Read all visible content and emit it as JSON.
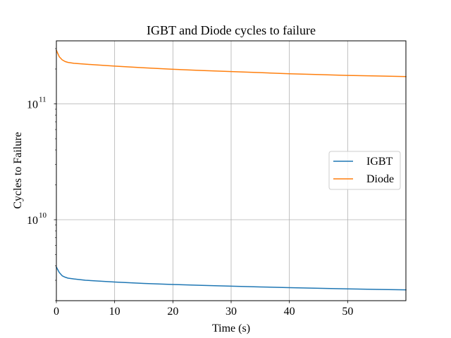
{
  "chart_data": {
    "type": "line",
    "title": "IGBT and Diode cycles to failure",
    "xlabel": "Time (s)",
    "ylabel": "Cycles to Failure",
    "xlim": [
      0,
      60
    ],
    "ylim": [
      2000000000,
      350000000000
    ],
    "yscale": "log",
    "grid": true,
    "legend_position": "center-right",
    "x_ticks": [
      0,
      10,
      20,
      30,
      40,
      50
    ],
    "y_ticks": [
      {
        "value": 10000000000,
        "base": "10",
        "exp": "10"
      },
      {
        "value": 100000000000,
        "base": "10",
        "exp": "11"
      }
    ],
    "series": [
      {
        "name": "IGBT",
        "color": "#1f77b4",
        "points": [
          [
            0,
            3900000000
          ],
          [
            0.5,
            3500000000
          ],
          [
            1,
            3280000000
          ],
          [
            1.5,
            3190000000
          ],
          [
            2,
            3130000000
          ],
          [
            3,
            3080000000
          ],
          [
            5,
            3000000000
          ],
          [
            10,
            2900000000
          ],
          [
            15,
            2820000000
          ],
          [
            20,
            2760000000
          ],
          [
            25,
            2710000000
          ],
          [
            30,
            2670000000
          ],
          [
            35,
            2630000000
          ],
          [
            40,
            2590000000
          ],
          [
            45,
            2560000000
          ],
          [
            50,
            2530000000
          ],
          [
            55,
            2500000000
          ],
          [
            60,
            2480000000
          ]
        ]
      },
      {
        "name": "Diode",
        "color": "#ff7f0e",
        "points": [
          [
            0,
            290000000000
          ],
          [
            0.5,
            255000000000
          ],
          [
            1,
            240000000000
          ],
          [
            1.5,
            232000000000
          ],
          [
            2,
            228000000000
          ],
          [
            3,
            224000000000
          ],
          [
            5,
            220000000000
          ],
          [
            10,
            212000000000
          ],
          [
            15,
            205000000000
          ],
          [
            20,
            199000000000
          ],
          [
            25,
            194000000000
          ],
          [
            30,
            190000000000
          ],
          [
            35,
            186000000000
          ],
          [
            40,
            182000000000
          ],
          [
            45,
            179000000000
          ],
          [
            50,
            176000000000
          ],
          [
            55,
            174000000000
          ],
          [
            60,
            172000000000
          ]
        ]
      }
    ]
  }
}
